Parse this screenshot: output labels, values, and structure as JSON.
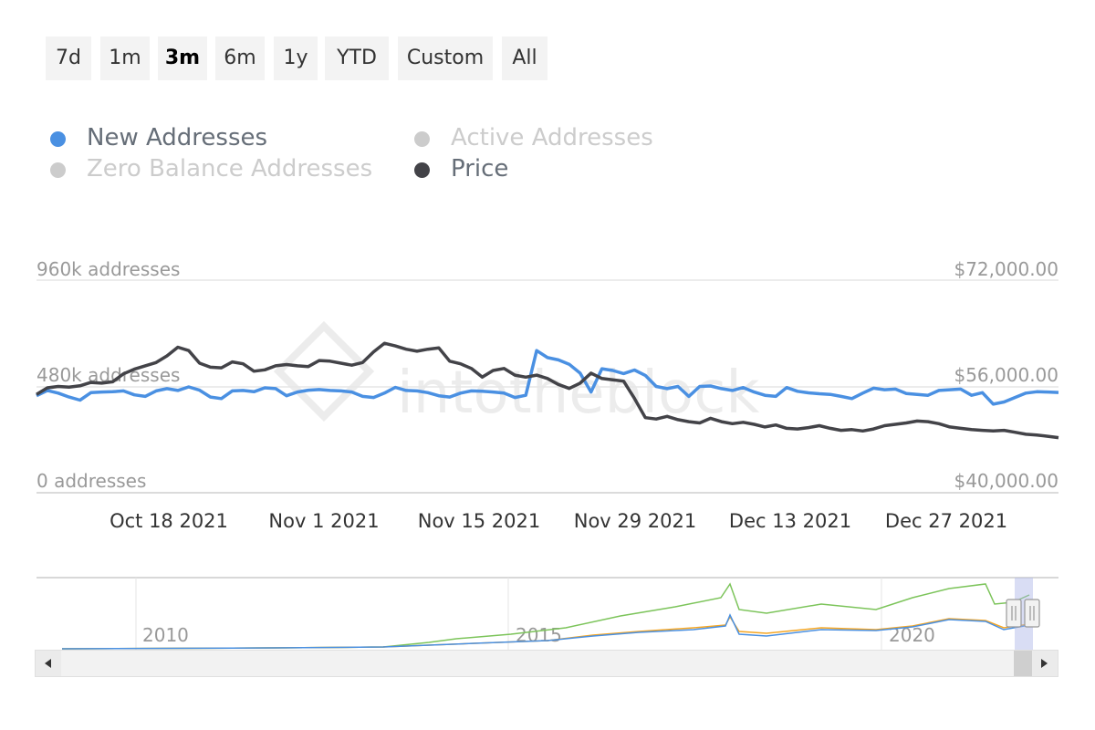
{
  "range_selector": {
    "buttons": [
      "7d",
      "1m",
      "3m",
      "6m",
      "1y",
      "YTD",
      "Custom",
      "All"
    ],
    "selected": "3m"
  },
  "legend": {
    "items": [
      {
        "label": "New Addresses",
        "color": "#4a90e2",
        "active": true
      },
      {
        "label": "Active Addresses",
        "color": "#cccccc",
        "active": false
      },
      {
        "label": "Zero Balance Addresses",
        "color": "#cccccc",
        "active": false
      },
      {
        "label": "Price",
        "color": "#434348",
        "active": true
      }
    ]
  },
  "watermark": "intotheblock",
  "chart_data": {
    "type": "line",
    "title": "",
    "x_range": [
      "2021-10-09",
      "2022-01-07"
    ],
    "x_ticks": [
      "Oct 18 2021",
      "Nov 1 2021",
      "Nov 15 2021",
      "Nov 29 2021",
      "Dec 13 2021",
      "Dec 27 2021"
    ],
    "y_left": {
      "ticks": [
        "0 addresses",
        "480k addresses",
        "960k addresses"
      ],
      "range": [
        0,
        960000
      ]
    },
    "y_right": {
      "ticks": [
        "$40,000.00",
        "$56,000.00",
        "$72,000.00"
      ],
      "range": [
        40000,
        72000
      ]
    },
    "grid": "horizontal",
    "legend_position": "top-left",
    "series": [
      {
        "name": "New Addresses",
        "axis": "left",
        "color": "#4a90e2",
        "values": [
          438000,
          462000,
          450000,
          432000,
          418000,
          452000,
          455000,
          456000,
          460000,
          442000,
          435000,
          460000,
          470000,
          462000,
          478000,
          463000,
          432000,
          425000,
          460000,
          462000,
          456000,
          474000,
          470000,
          438000,
          455000,
          463000,
          466000,
          462000,
          460000,
          455000,
          435000,
          430000,
          450000,
          476000,
          462000,
          460000,
          452000,
          438000,
          432000,
          450000,
          460000,
          458000,
          455000,
          450000,
          430000,
          440000,
          642000,
          610000,
          600000,
          580000,
          540000,
          455000,
          560000,
          552000,
          538000,
          554000,
          530000,
          480000,
          470000,
          480000,
          435000,
          480000,
          482000,
          470000,
          462000,
          475000,
          455000,
          440000,
          435000,
          475000,
          458000,
          451000,
          447000,
          444000,
          435000,
          425000,
          450000,
          472000,
          465000,
          468000,
          448000,
          444000,
          440000,
          462000,
          465000,
          468000,
          440000,
          452000,
          400000,
          410000,
          430000,
          450000,
          456000,
          455000,
          453000
        ]
      },
      {
        "name": "Price",
        "axis": "right",
        "color": "#434348",
        "values": [
          54800,
          55800,
          56000,
          55900,
          56100,
          56600,
          56500,
          56700,
          57900,
          58600,
          59100,
          59600,
          60600,
          61900,
          61400,
          59500,
          58900,
          58800,
          59700,
          59400,
          58300,
          58500,
          59100,
          59300,
          59100,
          59000,
          59900,
          59800,
          59500,
          59200,
          59600,
          61200,
          62500,
          62100,
          61600,
          61300,
          61600,
          61800,
          59800,
          59400,
          58700,
          57400,
          58400,
          58700,
          57700,
          57400,
          57700,
          57200,
          56300,
          55700,
          56500,
          58000,
          57200,
          57000,
          56800,
          54200,
          51300,
          51100,
          51500,
          51000,
          50700,
          50500,
          51200,
          50700,
          50400,
          50600,
          50300,
          49900,
          50200,
          49700,
          49600,
          49800,
          50100,
          49700,
          49400,
          49500,
          49300,
          49600,
          50100,
          50300,
          50500,
          50800,
          50700,
          50400,
          49900,
          49700,
          49500,
          49400,
          49300,
          49400,
          49100,
          48800,
          48700,
          48500,
          48300
        ]
      }
    ]
  },
  "navigator": {
    "x_ticks": [
      "2010",
      "2015",
      "2020"
    ],
    "series_colors": [
      "#7cc45a",
      "#f5a623",
      "#4a90e2"
    ]
  },
  "scrollbar": {
    "left_icon": "arrow-left-icon",
    "right_icon": "arrow-right-icon"
  }
}
